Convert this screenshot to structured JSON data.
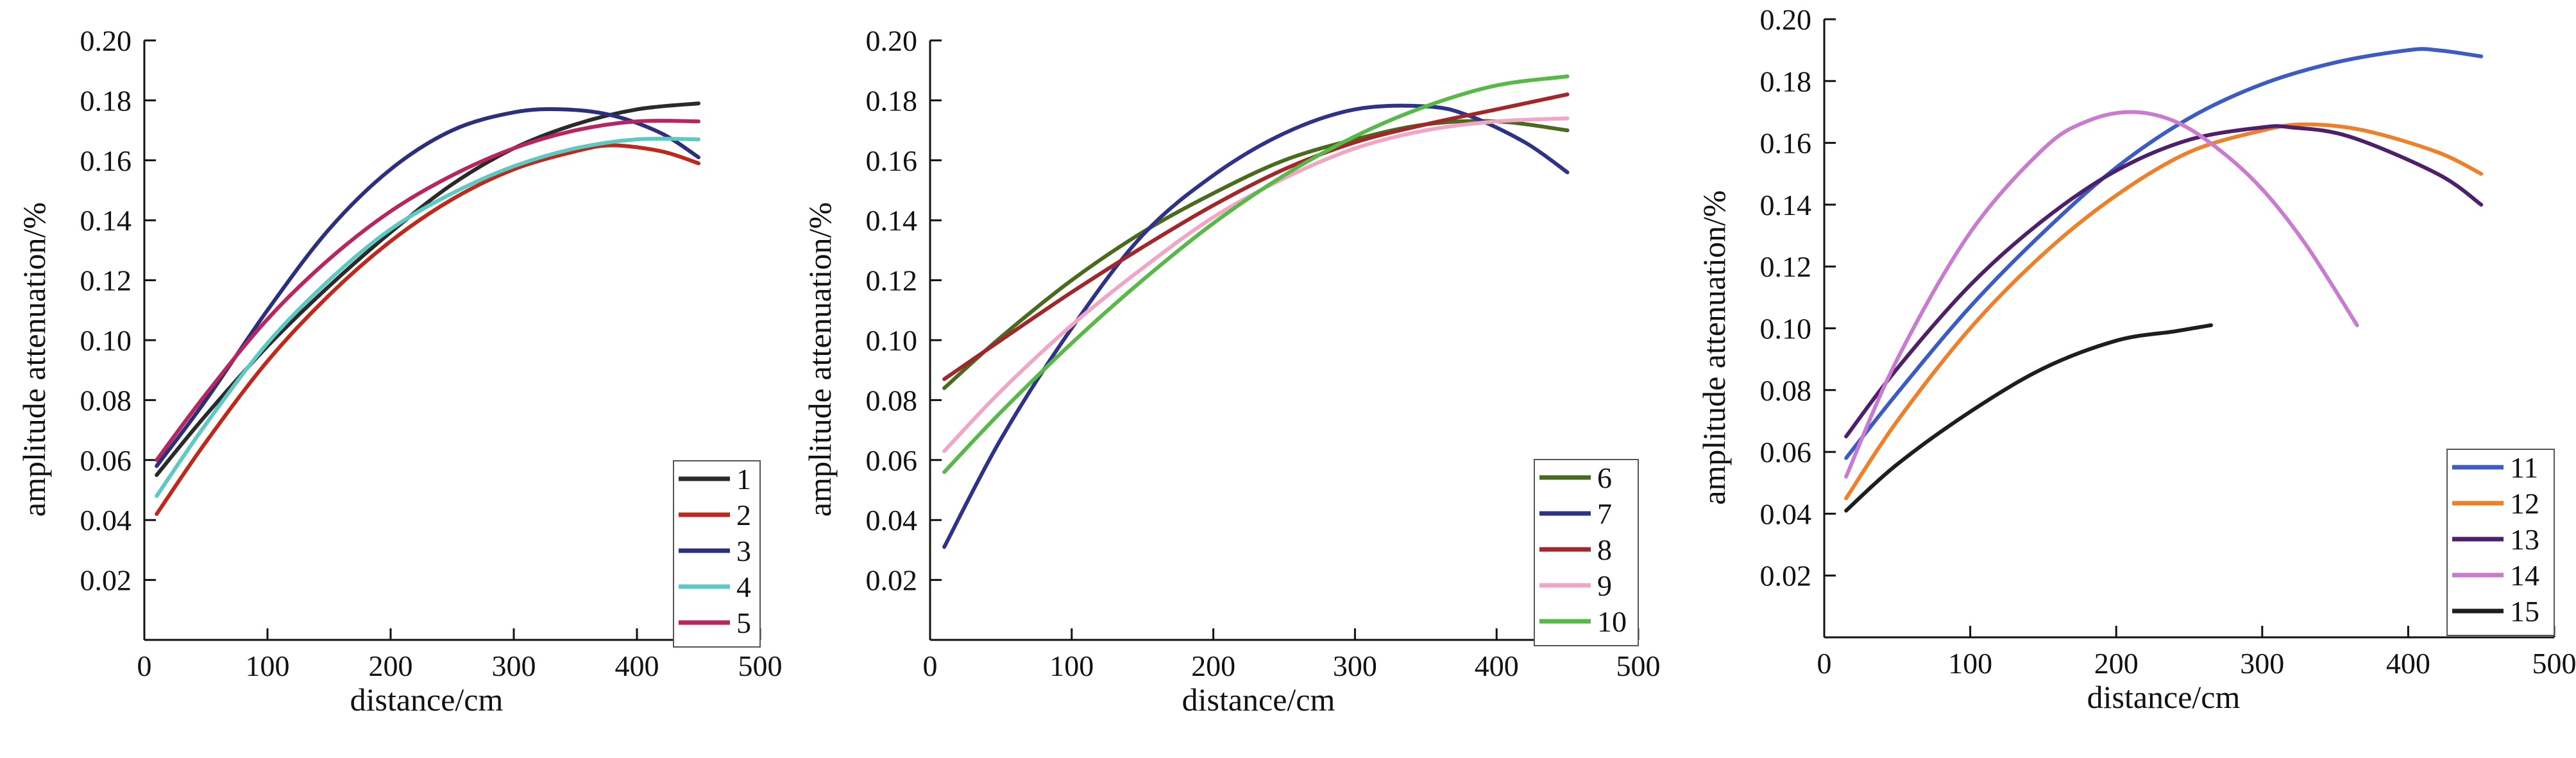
{
  "chart_data": [
    {
      "type": "line",
      "title": "",
      "xlabel": "distance/cm",
      "ylabel": "amplitude attenuation/%",
      "xlim": [
        0,
        500
      ],
      "ylim": [
        0,
        0.2
      ],
      "xticks": [
        "0",
        "100",
        "200",
        "300",
        "400",
        "500"
      ],
      "yticks": [
        "0.02",
        "0.04",
        "0.06",
        "0.08",
        "0.10",
        "0.12",
        "0.14",
        "0.16",
        "0.18",
        "0.20"
      ],
      "grid": false,
      "legend_position": "bottom-right",
      "series": [
        {
          "name": "1",
          "color": "#2a2a2a",
          "x": [
            10,
            50,
            100,
            150,
            200,
            250,
            300,
            350,
            400,
            450
          ],
          "y": [
            0.055,
            0.075,
            0.098,
            0.118,
            0.136,
            0.152,
            0.164,
            0.172,
            0.177,
            0.179
          ]
        },
        {
          "name": "2",
          "color": "#c0281c",
          "x": [
            10,
            50,
            100,
            150,
            200,
            250,
            300,
            350,
            380,
            420,
            450
          ],
          "y": [
            0.042,
            0.066,
            0.093,
            0.115,
            0.133,
            0.147,
            0.157,
            0.163,
            0.165,
            0.163,
            0.159
          ]
        },
        {
          "name": "3",
          "color": "#2b2f7e",
          "x": [
            10,
            50,
            100,
            150,
            200,
            250,
            300,
            340,
            380,
            420,
            450
          ],
          "y": [
            0.058,
            0.08,
            0.11,
            0.137,
            0.157,
            0.17,
            0.176,
            0.177,
            0.175,
            0.169,
            0.161
          ]
        },
        {
          "name": "4",
          "color": "#5ec8c2",
          "x": [
            10,
            50,
            100,
            150,
            200,
            250,
            300,
            350,
            400,
            450
          ],
          "y": [
            0.048,
            0.072,
            0.099,
            0.12,
            0.137,
            0.149,
            0.158,
            0.164,
            0.167,
            0.167
          ]
        },
        {
          "name": "5",
          "color": "#b8265f",
          "x": [
            10,
            50,
            100,
            150,
            200,
            250,
            300,
            350,
            400,
            450
          ],
          "y": [
            0.06,
            0.082,
            0.107,
            0.127,
            0.143,
            0.155,
            0.164,
            0.17,
            0.173,
            0.173
          ]
        }
      ]
    },
    {
      "type": "line",
      "title": "",
      "xlabel": "distance/cm",
      "ylabel": "amplitude attenuation/%",
      "xlim": [
        0,
        500
      ],
      "ylim": [
        0,
        0.2
      ],
      "xticks": [
        "0",
        "100",
        "200",
        "300",
        "400",
        "500"
      ],
      "yticks": [
        "0.02",
        "0.04",
        "0.06",
        "0.08",
        "0.10",
        "0.12",
        "0.14",
        "0.16",
        "0.18",
        "0.20"
      ],
      "grid": false,
      "legend_position": "bottom-right",
      "series": [
        {
          "name": "6",
          "color": "#4a6a1e",
          "x": [
            10,
            50,
            100,
            150,
            200,
            250,
            300,
            350,
            400,
            450
          ],
          "y": [
            0.084,
            0.101,
            0.12,
            0.136,
            0.149,
            0.16,
            0.167,
            0.172,
            0.173,
            0.17
          ]
        },
        {
          "name": "7",
          "color": "#2e3388",
          "x": [
            10,
            50,
            100,
            150,
            200,
            250,
            300,
            350,
            380,
            420,
            450
          ],
          "y": [
            0.031,
            0.067,
            0.104,
            0.135,
            0.155,
            0.169,
            0.177,
            0.178,
            0.175,
            0.166,
            0.156
          ]
        },
        {
          "name": "8",
          "color": "#a3262a",
          "x": [
            10,
            50,
            100,
            150,
            200,
            250,
            300,
            350,
            400,
            450
          ],
          "y": [
            0.087,
            0.1,
            0.116,
            0.131,
            0.145,
            0.157,
            0.166,
            0.172,
            0.177,
            0.182
          ]
        },
        {
          "name": "9",
          "color": "#f2a6c6",
          "x": [
            10,
            50,
            100,
            150,
            200,
            250,
            300,
            350,
            400,
            450
          ],
          "y": [
            0.063,
            0.083,
            0.105,
            0.124,
            0.141,
            0.154,
            0.164,
            0.17,
            0.173,
            0.174
          ]
        },
        {
          "name": "10",
          "color": "#57b947",
          "x": [
            10,
            50,
            100,
            150,
            200,
            250,
            300,
            350,
            400,
            450
          ],
          "y": [
            0.056,
            0.076,
            0.099,
            0.12,
            0.139,
            0.155,
            0.168,
            0.178,
            0.185,
            0.188
          ]
        }
      ]
    },
    {
      "type": "line",
      "title": "",
      "xlabel": "distance/cm",
      "ylabel": "amplitude attenuation/%",
      "xlim": [
        0,
        500
      ],
      "ylim": [
        0,
        0.2
      ],
      "xticks": [
        "0",
        "100",
        "200",
        "300",
        "400",
        "500"
      ],
      "yticks": [
        "0.02",
        "0.04",
        "0.06",
        "0.08",
        "0.10",
        "0.12",
        "0.14",
        "0.16",
        "0.18",
        "0.20"
      ],
      "grid": false,
      "legend_position": "bottom-right",
      "series": [
        {
          "name": "11",
          "color": "#3c5cc4",
          "x": [
            15,
            50,
            100,
            150,
            200,
            250,
            300,
            350,
            400,
            420,
            450
          ],
          "y": [
            0.058,
            0.079,
            0.107,
            0.131,
            0.152,
            0.168,
            0.179,
            0.186,
            0.19,
            0.19,
            0.188
          ]
        },
        {
          "name": "12",
          "color": "#f07f2a",
          "x": [
            15,
            50,
            100,
            150,
            200,
            250,
            300,
            330,
            370,
            420,
            450
          ],
          "y": [
            0.045,
            0.07,
            0.1,
            0.124,
            0.143,
            0.157,
            0.164,
            0.166,
            0.164,
            0.157,
            0.15
          ]
        },
        {
          "name": "13",
          "color": "#4e1f6a",
          "x": [
            15,
            50,
            100,
            150,
            200,
            250,
            300,
            320,
            360,
            420,
            450
          ],
          "y": [
            0.065,
            0.087,
            0.114,
            0.135,
            0.151,
            0.161,
            0.165,
            0.165,
            0.162,
            0.15,
            0.14
          ]
        },
        {
          "name": "14",
          "color": "#c97ccf",
          "x": [
            15,
            50,
            100,
            150,
            180,
            210,
            240,
            270,
            300,
            330,
            365
          ],
          "y": [
            0.052,
            0.09,
            0.131,
            0.158,
            0.167,
            0.17,
            0.167,
            0.158,
            0.145,
            0.127,
            0.101
          ]
        },
        {
          "name": "15",
          "color": "#1e1e1e",
          "x": [
            15,
            50,
            100,
            150,
            200,
            240,
            265
          ],
          "y": [
            0.041,
            0.056,
            0.073,
            0.087,
            0.096,
            0.099,
            0.101
          ]
        }
      ]
    }
  ]
}
